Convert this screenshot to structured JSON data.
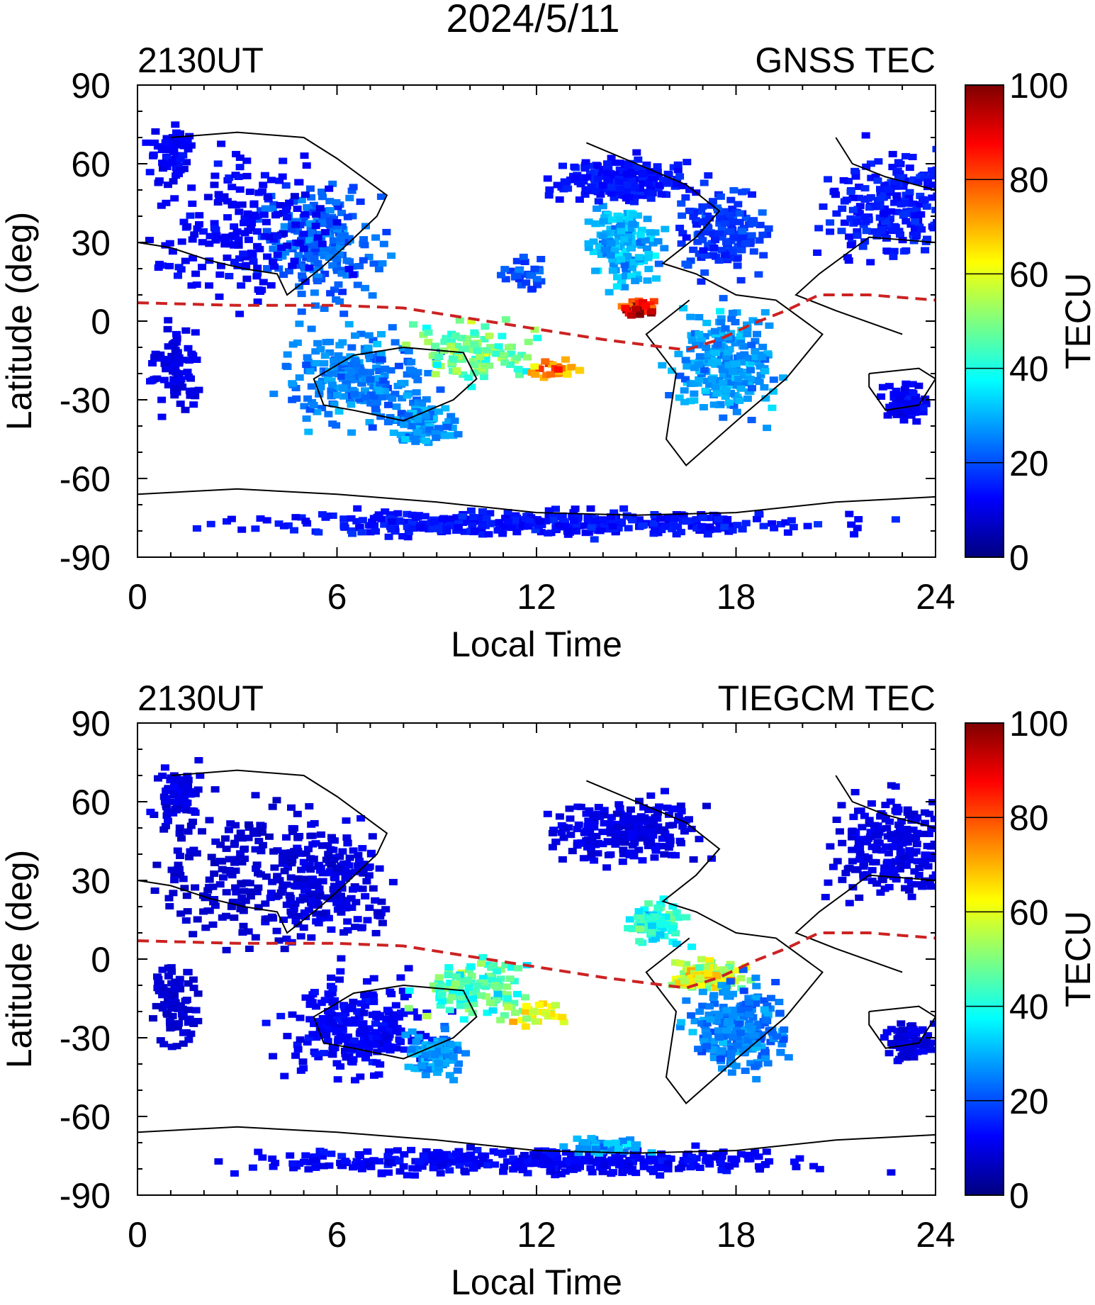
{
  "figure": {
    "date_title": "2024/5/11"
  },
  "colorbar": {
    "label": "TECU",
    "min": 0,
    "max": 100,
    "ticks": [
      "0",
      "20",
      "40",
      "60",
      "80",
      "100"
    ],
    "colors": [
      "#00007f",
      "#0000ff",
      "#007fff",
      "#00ffff",
      "#7fff7f",
      "#ffff00",
      "#ff7f00",
      "#ff0000",
      "#7f0000"
    ]
  },
  "colors": {
    "equator_line": "#cc2222",
    "coastline": "#000000"
  },
  "chart_data": [
    {
      "type": "heatmap",
      "title": "GNSS TEC",
      "time_label": "2130UT",
      "xlabel": "Local Time",
      "ylabel": "Latitude (deg)",
      "xlim": [
        0,
        24
      ],
      "ylim": [
        -90,
        90
      ],
      "x_ticks": [
        "0",
        "6",
        "12",
        "18",
        "24"
      ],
      "y_ticks": [
        "90",
        "60",
        "30",
        "0",
        "-30",
        "-60",
        "-90"
      ],
      "magnetic_equator": [
        [
          0,
          7
        ],
        [
          3,
          6
        ],
        [
          6,
          6
        ],
        [
          8,
          5
        ],
        [
          9.5,
          2
        ],
        [
          12,
          -3
        ],
        [
          14,
          -7
        ],
        [
          16.5,
          -11
        ],
        [
          17.5,
          -7
        ],
        [
          18.5,
          -1
        ],
        [
          19.5,
          4
        ],
        [
          20.5,
          10
        ],
        [
          22,
          10
        ],
        [
          24,
          8
        ]
      ],
      "blobs": [
        {
          "lt": 5.5,
          "lat": 30,
          "tec": 22,
          "w": 2.5,
          "h": 30,
          "n": 220
        },
        {
          "lt": 3.0,
          "lat": 35,
          "tec": 12,
          "w": 4.0,
          "h": 40,
          "n": 200
        },
        {
          "lt": 6.5,
          "lat": -20,
          "tec": 25,
          "w": 3.0,
          "h": 25,
          "n": 260
        },
        {
          "lt": 8.5,
          "lat": -38,
          "tec": 28,
          "w": 1.2,
          "h": 10,
          "n": 90
        },
        {
          "lt": 10.0,
          "lat": -12,
          "tec": 48,
          "w": 2.5,
          "h": 16,
          "n": 110
        },
        {
          "lt": 12.5,
          "lat": -18,
          "tec": 72,
          "w": 1.3,
          "h": 6,
          "n": 30
        },
        {
          "lt": 15.0,
          "lat": 6,
          "tec": 90,
          "w": 0.7,
          "h": 4,
          "n": 30
        },
        {
          "lt": 14.5,
          "lat": 30,
          "tec": 30,
          "w": 1.5,
          "h": 22,
          "n": 150
        },
        {
          "lt": 14.5,
          "lat": 55,
          "tec": 14,
          "w": 3.0,
          "h": 12,
          "n": 200
        },
        {
          "lt": 17.5,
          "lat": -15,
          "tec": 28,
          "w": 2.0,
          "h": 28,
          "n": 240
        },
        {
          "lt": 17.5,
          "lat": 35,
          "tec": 18,
          "w": 2.0,
          "h": 22,
          "n": 150
        },
        {
          "lt": 22.5,
          "lat": 45,
          "tec": 15,
          "w": 2.5,
          "h": 28,
          "n": 220
        },
        {
          "lt": 23.0,
          "lat": -30,
          "tec": 12,
          "w": 1.0,
          "h": 10,
          "n": 80
        },
        {
          "lt": 12.0,
          "lat": -76,
          "tec": 14,
          "w": 12.0,
          "h": 7,
          "n": 380
        },
        {
          "lt": 1.0,
          "lat": 65,
          "tec": 12,
          "w": 1.0,
          "h": 15,
          "n": 60
        },
        {
          "lt": 1.0,
          "lat": -15,
          "tec": 10,
          "w": 1.0,
          "h": 25,
          "n": 80
        },
        {
          "lt": 11.5,
          "lat": 20,
          "tec": 20,
          "w": 0.8,
          "h": 8,
          "n": 30
        }
      ]
    },
    {
      "type": "heatmap",
      "title": "TIEGCM TEC",
      "time_label": "2130UT",
      "xlabel": "Local Time",
      "ylabel": "Latitude (deg)",
      "xlim": [
        0,
        24
      ],
      "ylim": [
        -90,
        90
      ],
      "x_ticks": [
        "0",
        "6",
        "12",
        "18",
        "24"
      ],
      "y_ticks": [
        "90",
        "60",
        "30",
        "0",
        "-30",
        "-60",
        "-90"
      ],
      "magnetic_equator": [
        [
          0,
          7
        ],
        [
          3,
          6
        ],
        [
          6,
          6
        ],
        [
          8,
          5
        ],
        [
          9.5,
          2
        ],
        [
          12,
          -3
        ],
        [
          14,
          -7
        ],
        [
          16.5,
          -11
        ],
        [
          17.5,
          -7
        ],
        [
          18.5,
          -1
        ],
        [
          19.5,
          4
        ],
        [
          20.5,
          10
        ],
        [
          22,
          10
        ],
        [
          24,
          8
        ]
      ],
      "blobs": [
        {
          "lt": 5.5,
          "lat": 30,
          "tec": 10,
          "w": 2.5,
          "h": 30,
          "n": 220
        },
        {
          "lt": 3.0,
          "lat": 35,
          "tec": 8,
          "w": 4.0,
          "h": 40,
          "n": 200
        },
        {
          "lt": 6.5,
          "lat": -25,
          "tec": 12,
          "w": 3.0,
          "h": 25,
          "n": 260
        },
        {
          "lt": 8.8,
          "lat": -35,
          "tec": 28,
          "w": 1.2,
          "h": 12,
          "n": 110
        },
        {
          "lt": 10.0,
          "lat": -10,
          "tec": 45,
          "w": 2.5,
          "h": 16,
          "n": 120
        },
        {
          "lt": 12.0,
          "lat": -20,
          "tec": 60,
          "w": 1.3,
          "h": 6,
          "n": 30
        },
        {
          "lt": 17.0,
          "lat": -5,
          "tec": 58,
          "w": 1.5,
          "h": 8,
          "n": 120
        },
        {
          "lt": 15.5,
          "lat": 15,
          "tec": 40,
          "w": 1.2,
          "h": 12,
          "n": 90
        },
        {
          "lt": 14.5,
          "lat": 50,
          "tec": 10,
          "w": 3.0,
          "h": 18,
          "n": 220
        },
        {
          "lt": 18.0,
          "lat": -25,
          "tec": 25,
          "w": 2.0,
          "h": 25,
          "n": 240
        },
        {
          "lt": 22.5,
          "lat": 45,
          "tec": 10,
          "w": 2.5,
          "h": 28,
          "n": 220
        },
        {
          "lt": 23.0,
          "lat": -30,
          "tec": 10,
          "w": 1.0,
          "h": 10,
          "n": 80
        },
        {
          "lt": 12.0,
          "lat": -76,
          "tec": 12,
          "w": 12.0,
          "h": 7,
          "n": 380
        },
        {
          "lt": 14.0,
          "lat": -70,
          "tec": 28,
          "w": 1.5,
          "h": 4,
          "n": 60
        },
        {
          "lt": 1.0,
          "lat": 65,
          "tec": 10,
          "w": 1.0,
          "h": 15,
          "n": 60
        },
        {
          "lt": 1.0,
          "lat": -15,
          "tec": 8,
          "w": 1.0,
          "h": 25,
          "n": 80
        }
      ]
    }
  ]
}
